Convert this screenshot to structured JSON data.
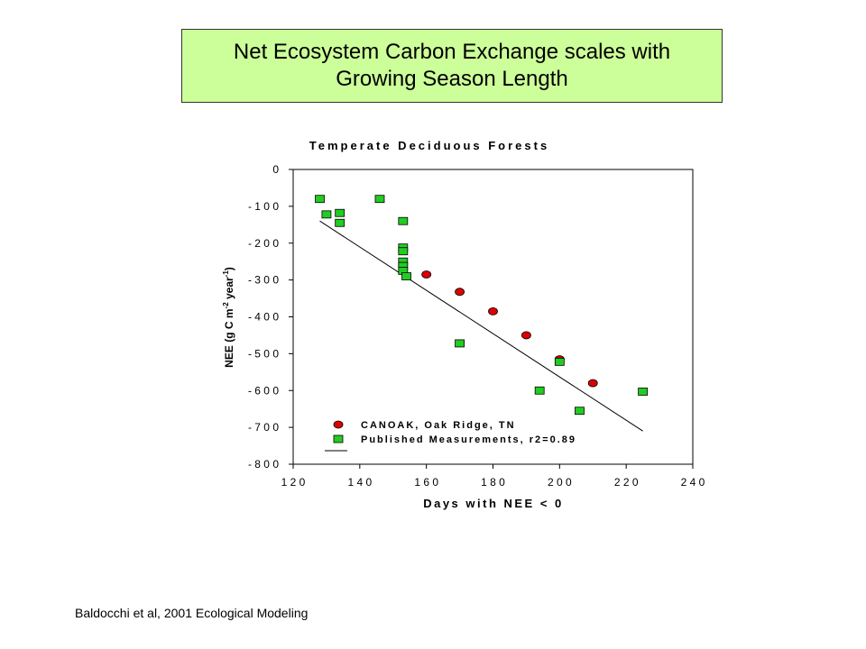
{
  "slide": {
    "title": "Net Ecosystem Carbon Exchange scales with Growing Season Length",
    "citation": "Baldocchi et al, 2001 Ecological Modeling"
  },
  "chart_data": {
    "type": "scatter",
    "title": "Temperate Deciduous Forests",
    "xlabel": "Days with NEE < 0",
    "ylabel": "NEE (g C m-2 year-1)",
    "xlim": [
      120,
      240
    ],
    "ylim": [
      -800,
      0
    ],
    "xticks": [
      120,
      140,
      160,
      180,
      200,
      220,
      240
    ],
    "yticks": [
      0,
      -100,
      -200,
      -300,
      -400,
      -500,
      -600,
      -700,
      -800
    ],
    "grid": false,
    "legend_position": "bottom-left",
    "series": [
      {
        "name": "CANOAK, Oak Ridge, TN",
        "marker": "circle",
        "color": "#dd0000",
        "points": [
          [
            160,
            -285
          ],
          [
            170,
            -332
          ],
          [
            180,
            -385
          ],
          [
            190,
            -450
          ],
          [
            200,
            -515
          ],
          [
            210,
            -580
          ]
        ]
      },
      {
        "name": "Published Measurements, r2=0.89",
        "marker": "square",
        "color": "#22cc22",
        "points": [
          [
            128,
            -80
          ],
          [
            130,
            -122
          ],
          [
            134,
            -118
          ],
          [
            134,
            -145
          ],
          [
            146,
            -80
          ],
          [
            153,
            -140
          ],
          [
            153,
            -212
          ],
          [
            153,
            -222
          ],
          [
            153,
            -250
          ],
          [
            153,
            -262
          ],
          [
            153,
            -275
          ],
          [
            154,
            -290
          ],
          [
            170,
            -472
          ],
          [
            194,
            -600
          ],
          [
            200,
            -522
          ],
          [
            206,
            -655
          ],
          [
            225,
            -603
          ]
        ]
      }
    ],
    "fit_line": {
      "x": [
        128,
        225
      ],
      "y": [
        -140,
        -710
      ]
    }
  }
}
